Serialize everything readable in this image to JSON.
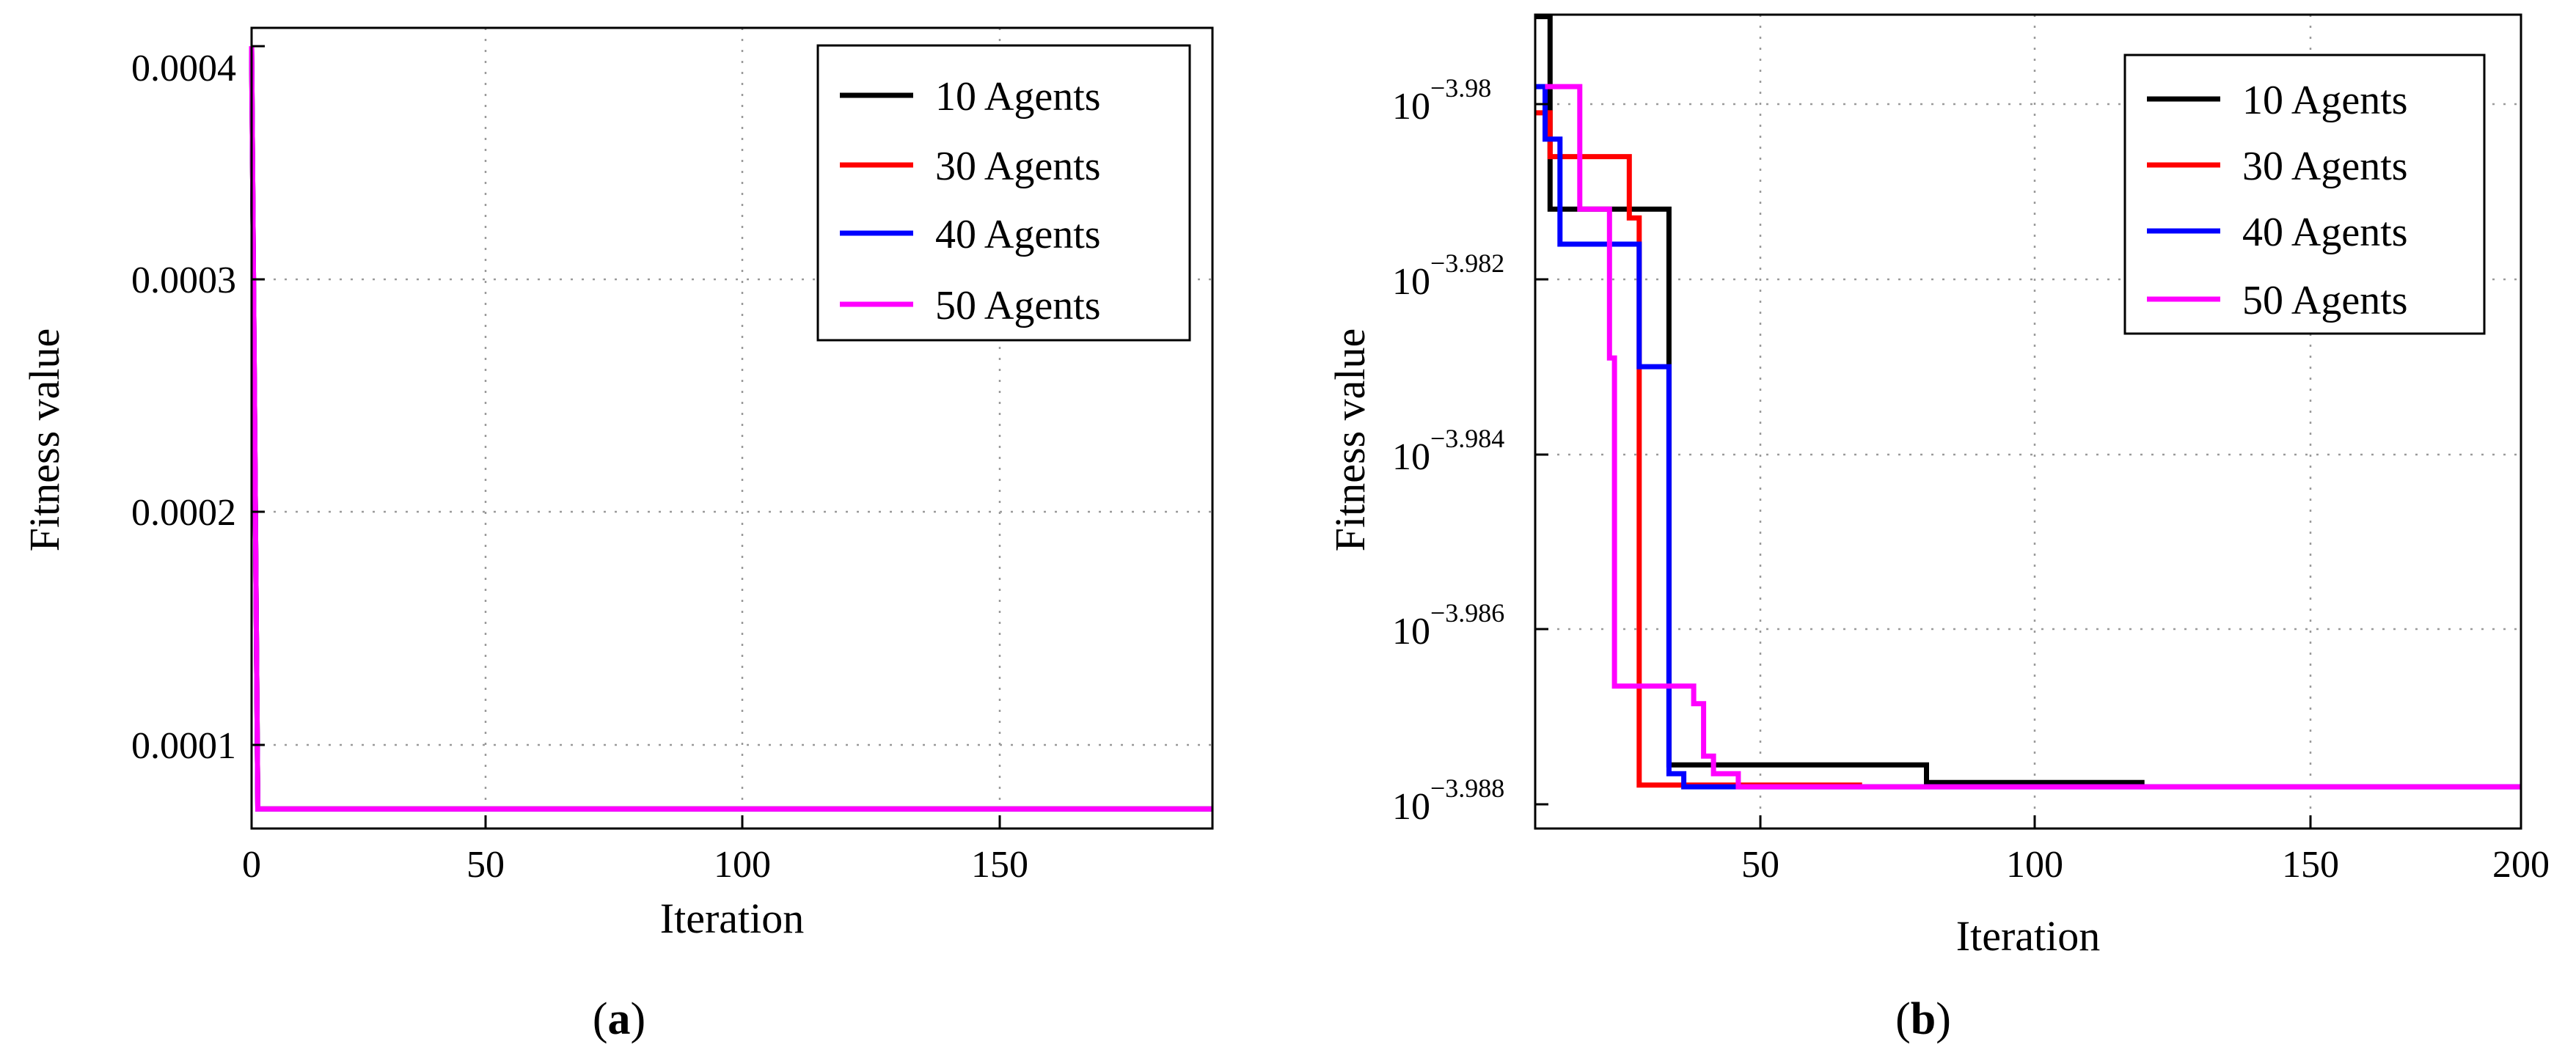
{
  "chart_data": [
    {
      "type": "line",
      "panel_label": "a",
      "xlabel": "Iteration",
      "ylabel": "Fitness value",
      "xlim": [
        0,
        200
      ],
      "ylim": [
        5e-05,
        0.00041
      ],
      "xticks": [
        0,
        50,
        100,
        150
      ],
      "xtick_labels": [
        "0",
        "50",
        "100",
        "150"
      ],
      "yticks": [
        0.0001,
        0.0002,
        0.0003,
        0.0004
      ],
      "ytick_labels": [
        "0.0001",
        "0.0002",
        "0.0003",
        "0.0004"
      ],
      "grid": true,
      "legend_position": "top-right",
      "series": [
        {
          "name": "10 Agents",
          "color": "#000000",
          "points": [
            [
              0,
              0.0004
            ],
            [
              1.3,
              7.25e-05
            ],
            [
              200,
              7.25e-05
            ]
          ]
        },
        {
          "name": "30 Agents",
          "color": "#ff0000",
          "points": [
            [
              0,
              0.0004
            ],
            [
              1.3,
              7.25e-05
            ],
            [
              200,
              7.25e-05
            ]
          ]
        },
        {
          "name": "40 Agents",
          "color": "#0000ff",
          "points": [
            [
              0,
              0.0004
            ],
            [
              1.3,
              7.25e-05
            ],
            [
              200,
              7.25e-05
            ]
          ]
        },
        {
          "name": "50 Agents",
          "color": "#ff00ff",
          "points": [
            [
              0,
              0.0004
            ],
            [
              1.3,
              7.25e-05
            ],
            [
              200,
              7.25e-05
            ]
          ]
        }
      ]
    },
    {
      "type": "line",
      "panel_label": "b",
      "xlabel": "Iteration",
      "ylabel": "Fitness value",
      "yscale": "log10",
      "xlim": [
        1,
        200
      ],
      "ylim": [
        -3.9883,
        -3.979
      ],
      "xticks": [
        50,
        100,
        150,
        200
      ],
      "xtick_labels": [
        "50",
        "100",
        "150",
        "200"
      ],
      "yticks": [
        -3.98,
        -3.982,
        -3.984,
        -3.986,
        -3.988
      ],
      "ytick_base": "10",
      "ytick_exponents": [
        "−3.98",
        "−3.982",
        "−3.984",
        "−3.986",
        "−3.988"
      ],
      "grid": true,
      "legend_position": "top-right",
      "series": [
        {
          "name": "10 Agents",
          "color": "#000000",
          "steps": [
            [
              1,
              -3.979
            ],
            [
              4,
              -3.9812
            ],
            [
              28,
              -3.98755
            ],
            [
              80,
              -3.98775
            ],
            [
              124,
              -3.98775
            ]
          ]
        },
        {
          "name": "30 Agents",
          "color": "#ff0000",
          "steps": [
            [
              1,
              -3.9801
            ],
            [
              4,
              -3.9806
            ],
            [
              20,
              -3.9813
            ],
            [
              22,
              -3.98778
            ],
            [
              67,
              -3.98778
            ]
          ]
        },
        {
          "name": "40 Agents",
          "color": "#0000ff",
          "steps": [
            [
              1,
              -3.9798
            ],
            [
              3,
              -3.9804
            ],
            [
              6,
              -3.9816
            ],
            [
              22,
              -3.983
            ],
            [
              28,
              -3.98765
            ],
            [
              31,
              -3.9878
            ],
            [
              200,
              -3.9878
            ]
          ]
        },
        {
          "name": "50 Agents",
          "color": "#ff00ff",
          "steps": [
            [
              3,
              -3.9798
            ],
            [
              10,
              -3.9812
            ],
            [
              16,
              -3.9829
            ],
            [
              17,
              -3.98665
            ],
            [
              33,
              -3.98685
            ],
            [
              35,
              -3.98745
            ],
            [
              37,
              -3.98765
            ],
            [
              42,
              -3.9878
            ],
            [
              200,
              -3.9878
            ]
          ]
        }
      ]
    }
  ]
}
